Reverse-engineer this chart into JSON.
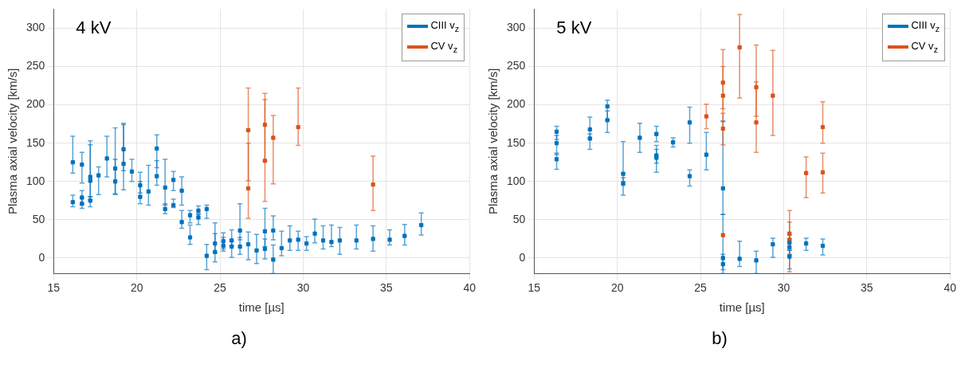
{
  "chart_data": [
    {
      "type": "scatter",
      "xlabel": "time [µs]",
      "ylabel": "Plasma axial velocity [km/s]",
      "annotations": [
        "4 kV",
        "a)"
      ],
      "xlim": [
        15,
        40
      ],
      "xticks": [
        15,
        20,
        25,
        30,
        35,
        40
      ],
      "ylim": [
        -20,
        325
      ],
      "yticks": [
        0,
        50,
        100,
        150,
        200,
        250,
        300
      ],
      "grid": true,
      "legend": "top right",
      "marker": "square",
      "series": [
        {
          "name": "CIII v$_{z}$",
          "color": "#0072bd",
          "x": [
            16.15,
            16.15,
            16.7,
            16.7,
            16.7,
            17.2,
            17.2,
            17.2,
            17.7,
            18.2,
            18.7,
            18.7,
            19.2,
            19.2,
            19.7,
            20.2,
            20.2,
            20.7,
            21.2,
            21.2,
            21.7,
            21.7,
            22.2,
            22.2,
            22.7,
            22.7,
            23.2,
            23.2,
            23.7,
            23.7,
            24.2,
            24.2,
            24.7,
            24.7,
            25.2,
            25.2,
            25.7,
            25.7,
            26.2,
            26.2,
            26.7,
            27.2,
            27.7,
            27.7,
            28.2,
            28.2,
            28.7,
            29.2,
            29.7,
            30.2,
            30.7,
            31.2,
            31.7,
            32.2,
            33.2,
            34.2,
            35.2,
            36.1,
            37.1
          ],
          "values": [
            125,
            73,
            122,
            79,
            71,
            106,
            101,
            75,
            108,
            130,
            117,
            100,
            142,
            123,
            113,
            95,
            80,
            87,
            143,
            107,
            92,
            64,
            102,
            69,
            88,
            47,
            56,
            27,
            62,
            53,
            64,
            3,
            19,
            8,
            22,
            16,
            23,
            15,
            36,
            15,
            18,
            10,
            35,
            12,
            36,
            -2,
            13,
            23,
            24,
            19,
            32,
            23,
            21,
            23,
            23,
            25,
            24,
            29,
            43
          ],
          "errors": [
            [
              111,
              159
            ],
            [
              67,
              82
            ],
            [
              98,
              138
            ],
            [
              70,
              88
            ],
            [
              65,
              78
            ],
            [
              80,
              153
            ],
            [
              76,
              148
            ],
            [
              67,
              80
            ],
            [
              83,
              119
            ],
            [
              106,
              159
            ],
            [
              83,
              170
            ],
            [
              84,
              129
            ],
            [
              114,
              176
            ],
            [
              89,
              174
            ],
            [
              100,
              129
            ],
            [
              85,
              112
            ],
            [
              71,
              100
            ],
            [
              69,
              121
            ],
            [
              118,
              161
            ],
            [
              95,
              127
            ],
            [
              69,
              129
            ],
            [
              58,
              71
            ],
            [
              88,
              113
            ],
            [
              66,
              77
            ],
            [
              69,
              106
            ],
            [
              39,
              62
            ],
            [
              46,
              62
            ],
            [
              18,
              43
            ],
            [
              57,
              68
            ],
            [
              44,
              58
            ],
            [
              52,
              69
            ],
            [
              -15,
              18
            ],
            [
              7,
              46
            ],
            [
              -5,
              32
            ],
            [
              12,
              33
            ],
            [
              9,
              27
            ],
            [
              16,
              37
            ],
            [
              1,
              22
            ],
            [
              24,
              71
            ],
            [
              5,
              27
            ],
            [
              -2,
              34
            ],
            [
              -7,
              31
            ],
            [
              15,
              65
            ],
            [
              -1,
              25
            ],
            [
              24,
              55
            ],
            [
              -20,
              17
            ],
            [
              3,
              35
            ],
            [
              10,
              42
            ],
            [
              10,
              35
            ],
            [
              10,
              28
            ],
            [
              20,
              51
            ],
            [
              12,
              42
            ],
            [
              15,
              43
            ],
            [
              5,
              40
            ],
            [
              12,
              43
            ],
            [
              9,
              42
            ],
            [
              17,
              37
            ],
            [
              17,
              44
            ],
            [
              30,
              59
            ]
          ]
        },
        {
          "name": "CV v$_{z}$",
          "color": "#d95319",
          "x": [
            26.7,
            26.7,
            27.7,
            27.7,
            28.2,
            29.7,
            34.2
          ],
          "values": [
            167,
            91,
            174,
            127,
            157,
            171,
            96
          ],
          "errors": [
            [
              101,
              222
            ],
            [
              52,
              150
            ],
            [
              127,
              215
            ],
            [
              74,
              207
            ],
            [
              97,
              186
            ],
            [
              147,
              222
            ],
            [
              62,
              133
            ]
          ]
        }
      ]
    },
    {
      "type": "scatter",
      "xlabel": "time [µs]",
      "ylabel": "Plasma axial velocity [km/s]",
      "annotations": [
        "5 kV",
        "b)"
      ],
      "xlim": [
        15,
        40
      ],
      "xticks": [
        15,
        20,
        25,
        30,
        35,
        40
      ],
      "ylim": [
        -20,
        325
      ],
      "yticks": [
        0,
        50,
        100,
        150,
        200,
        250,
        300
      ],
      "grid": true,
      "legend": "top right",
      "marker": "square",
      "series": [
        {
          "name": "CIII v$_{z}$",
          "color": "#0072bd",
          "x": [
            16.35,
            16.35,
            16.35,
            18.35,
            18.35,
            19.4,
            19.4,
            20.35,
            20.35,
            21.35,
            22.35,
            22.35,
            22.35,
            23.35,
            24.35,
            24.35,
            25.35,
            26.35,
            26.35,
            26.35,
            27.35,
            28.35,
            29.35,
            30.35,
            30.35,
            30.35,
            31.35,
            32.35
          ],
          "values": [
            165,
            150,
            129,
            168,
            156,
            198,
            180,
            110,
            97,
            157,
            162,
            134,
            131,
            151,
            177,
            107,
            135,
            91,
            0,
            -8,
            -1,
            -3,
            18,
            20,
            14,
            2,
            19,
            16
          ],
          "errors": [
            [
              155,
              172
            ],
            [
              135,
              160
            ],
            [
              116,
              137
            ],
            [
              157,
              184
            ],
            [
              142,
              162
            ],
            [
              180,
              206
            ],
            [
              164,
              192
            ],
            [
              100,
              152
            ],
            [
              82,
              105
            ],
            [
              138,
              176
            ],
            [
              152,
              172
            ],
            [
              124,
              147
            ],
            [
              112,
              142
            ],
            [
              145,
              157
            ],
            [
              150,
              197
            ],
            [
              94,
              115
            ],
            [
              115,
              164
            ],
            [
              57,
              179
            ],
            [
              -15,
              57
            ],
            [
              -20,
              5
            ],
            [
              -11,
              22
            ],
            [
              -20,
              9
            ],
            [
              1,
              26
            ],
            [
              10,
              30
            ],
            [
              5,
              25
            ],
            [
              -14,
              10
            ],
            [
              10,
              26
            ],
            [
              4,
              25
            ]
          ]
        },
        {
          "name": "CV v$_{z}$",
          "color": "#d95319",
          "x": [
            25.35,
            26.35,
            26.35,
            26.35,
            26.35,
            27.35,
            28.35,
            28.35,
            29.35,
            30.35,
            30.35,
            31.35,
            32.35,
            32.35
          ],
          "values": [
            185,
            229,
            212,
            169,
            30,
            275,
            223,
            177,
            212,
            32,
            24,
            111,
            171,
            112
          ],
          "errors": [
            [
              169,
              201
            ],
            [
              195,
              272
            ],
            [
              178,
              250
            ],
            [
              148,
              189
            ],
            null,
            [
              209,
              318
            ],
            [
              185,
              278
            ],
            [
              138,
              230
            ],
            [
              160,
              271
            ],
            [
              3,
              62
            ],
            [
              -18,
              47
            ],
            [
              79,
              132
            ],
            [
              150,
              204
            ],
            [
              85,
              137
            ]
          ]
        }
      ]
    }
  ]
}
